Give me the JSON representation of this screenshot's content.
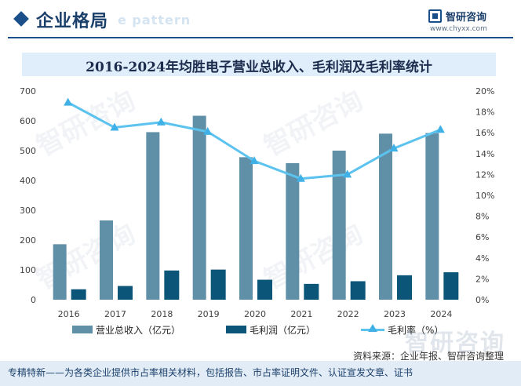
{
  "header": {
    "section_title": "企业格局",
    "section_ghost": "e pattern",
    "brand_name": "智研咨询",
    "brand_url": "www.chyxx.com"
  },
  "colors": {
    "revenue": "#5f90a8",
    "profit": "#0a5578",
    "margin": "#5cc3ef",
    "title_bar": "#dfeefa",
    "footer_bar": "#e2ecf6"
  },
  "chart_data": {
    "type": "bar",
    "title": "2016-2024年均胜电子营业总收入、毛利润及毛利率统计",
    "categories": [
      "2016",
      "2017",
      "2018",
      "2019",
      "2020",
      "2021",
      "2022",
      "2023",
      "2024"
    ],
    "series": [
      {
        "name": "营业总收入（亿元）",
        "type": "bar",
        "axis": "left",
        "values": [
          186,
          266,
          562,
          617,
          478,
          458,
          500,
          557,
          559
        ]
      },
      {
        "name": "毛利润（亿元）",
        "type": "bar",
        "axis": "left",
        "values": [
          35,
          46,
          98,
          101,
          67,
          53,
          62,
          82,
          92
        ]
      },
      {
        "name": "毛利率（%）",
        "type": "line",
        "axis": "right",
        "values": [
          18.9,
          16.5,
          17.0,
          16.1,
          13.3,
          11.6,
          12.0,
          14.5,
          16.3
        ]
      }
    ],
    "ylim_left": [
      0,
      700
    ],
    "yticks_left": [
      "0",
      "100",
      "200",
      "300",
      "400",
      "500",
      "600",
      "700"
    ],
    "ylim_right": [
      0,
      20
    ],
    "yticks_right": [
      "0%",
      "2%",
      "4%",
      "6%",
      "8%",
      "10%",
      "12%",
      "14%",
      "16%",
      "18%",
      "20%"
    ],
    "grid": false,
    "legend_position": "bottom"
  },
  "watermark_text": "智研咨询",
  "source_text": "资料来源：企业年报、智研咨询整理",
  "footer_text": "专精特新——为各类企业提供市占率相关材料，包括报告、市占率证明文件、认证宣发文章、证书"
}
